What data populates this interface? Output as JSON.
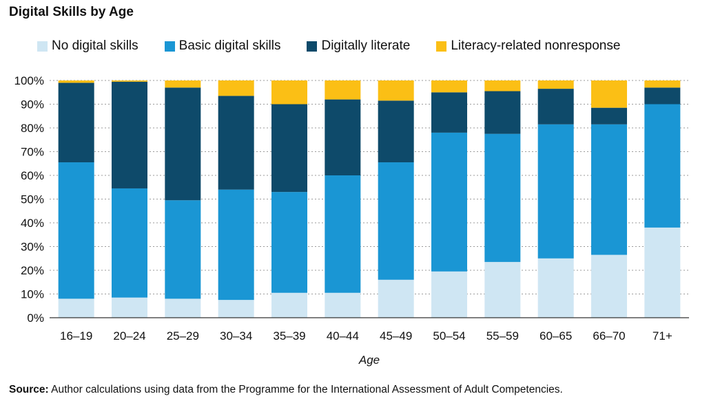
{
  "title": "Digital Skills by Age",
  "source": {
    "label": "Source:",
    "text": " Author calculations using data from the Programme for the International Assessment of Adult Competencies."
  },
  "chart_data": {
    "type": "bar",
    "stacked": true,
    "title": "Digital Skills by Age",
    "xlabel": "Age",
    "ylabel": "",
    "ylim": [
      0,
      100
    ],
    "yticks": [
      "0%",
      "10%",
      "20%",
      "30%",
      "40%",
      "50%",
      "60%",
      "70%",
      "80%",
      "90%",
      "100%"
    ],
    "grid": true,
    "legend_position": "top",
    "categories": [
      "16–19",
      "20–24",
      "25–29",
      "30–34",
      "35–39",
      "40–44",
      "45–49",
      "50–54",
      "55–59",
      "60–65",
      "66–70",
      "71+"
    ],
    "series": [
      {
        "name": "No digital skills",
        "color": "#cfe6f3",
        "values": [
          8,
          8.5,
          8,
          7.5,
          10.5,
          10.5,
          16,
          19.5,
          23.5,
          25,
          26.5,
          38
        ]
      },
      {
        "name": "Basic digital skills",
        "color": "#1a96d4",
        "values": [
          57.5,
          46,
          41.5,
          46.5,
          42.5,
          49.5,
          49.5,
          58.5,
          54,
          56.5,
          55,
          52
        ]
      },
      {
        "name": "Digitally literate",
        "color": "#0e4a6a",
        "values": [
          33.5,
          45,
          47.5,
          39.5,
          37,
          32,
          26,
          17,
          18,
          15,
          7,
          7
        ]
      },
      {
        "name": "Literacy-related nonresponse",
        "color": "#fbbf15",
        "values": [
          1,
          0.5,
          3,
          6.5,
          10,
          8,
          8.5,
          5,
          4.5,
          3.5,
          11.5,
          3
        ]
      }
    ]
  }
}
